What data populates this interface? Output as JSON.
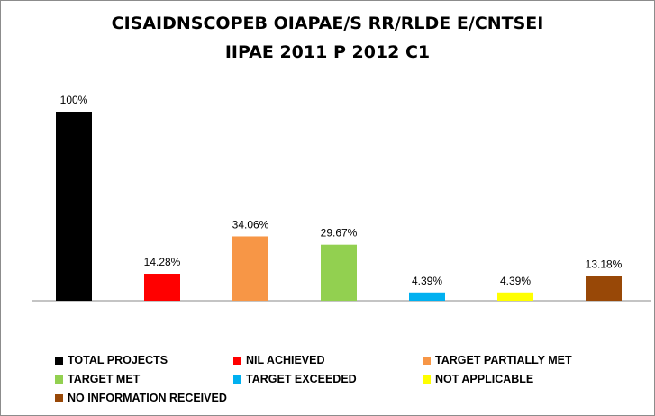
{
  "chart_data": {
    "type": "bar",
    "title_lines": [
      "CISAIDNSCOPEB OIAPAE/S RR/RLDE E/CNTSEI",
      "IIPAE 2011 P 2012 C1"
    ],
    "categories": [
      "TOTAL PROJECTS",
      "NIL ACHIEVED",
      "TARGET PARTIALLY MET",
      "TARGET MET",
      "TARGET EXCEEDED",
      "NOT APPLICABLE",
      "NO INFORMATION RECEIVED"
    ],
    "values": [
      100,
      14.28,
      34.06,
      29.67,
      4.39,
      4.39,
      13.18
    ],
    "value_labels": [
      "100%",
      "14.28%",
      "34.06%",
      "29.67%",
      "4.39%",
      "4.39%",
      "13.18%"
    ],
    "colors": [
      "#000000",
      "#ff0000",
      "#f79646",
      "#92d050",
      "#00b0f0",
      "#ffff00",
      "#984807"
    ],
    "ylim": [
      0,
      100
    ],
    "unit": "%",
    "legend_position": "bottom",
    "grid": false
  }
}
